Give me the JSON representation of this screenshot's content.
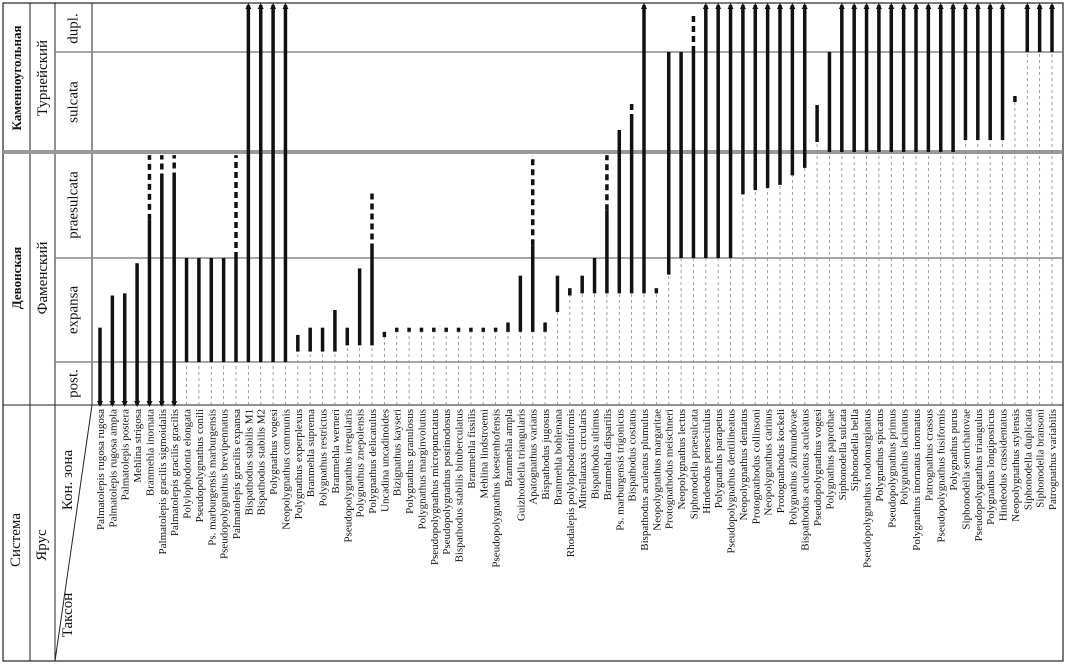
{
  "header": {
    "system": "Система",
    "stage": "Ярус",
    "zone": "Кон. зона",
    "taxon": "Таксон"
  },
  "systems": [
    {
      "label": "Каменноугольная"
    },
    {
      "label": "Девонская"
    }
  ],
  "stages": [
    {
      "label": "Турнейский"
    },
    {
      "label": "Фаменский"
    }
  ],
  "zones": [
    {
      "label": "post."
    },
    {
      "label": "expansa"
    },
    {
      "label": "praesulcata"
    },
    {
      "label": "sulcata"
    },
    {
      "label": "dupl."
    }
  ],
  "taxa": [
    {
      "name": "Palmatolepis rugosa rugosa",
      "solid": [
        0,
        1.33
      ],
      "down": true
    },
    {
      "name": "Palmatolepis rugosa ampla",
      "solid": [
        0,
        1.64
      ],
      "down": true
    },
    {
      "name": "Palmatolepis postera",
      "solid": [
        0,
        1.66
      ],
      "down": true
    },
    {
      "name": "Mehlina strigosa",
      "solid": [
        0,
        1.95
      ],
      "down": true
    },
    {
      "name": "Branmehla inornata",
      "solid": [
        0,
        2.36
      ],
      "dashed": [
        2.36,
        2.97
      ],
      "down": true
    },
    {
      "name": "Palmatolepis gracilis sigmoidalis",
      "solid": [
        0,
        2.74
      ],
      "dashed": [
        2.74,
        2.97
      ],
      "down": true
    },
    {
      "name": "Palmatolepis gracilis gracilis",
      "solid": [
        0,
        2.75
      ],
      "dashed": [
        2.75,
        2.97
      ],
      "down": true
    },
    {
      "name": "Polylophodonta elongata",
      "solid": [
        1,
        2
      ],
      "dotted": [
        0,
        1
      ]
    },
    {
      "name": "Pseudopolygnathus conili",
      "solid": [
        1,
        2
      ],
      "dotted": [
        0,
        1
      ]
    },
    {
      "name": "Ps. marburgensis marburgensis",
      "solid": [
        1,
        2
      ],
      "dotted": [
        0,
        1
      ]
    },
    {
      "name": "Pseudopolygnathus brevipennatus",
      "solid": [
        1,
        2
      ],
      "dotted": [
        0,
        1
      ]
    },
    {
      "name": "Palmatolepis gracilis expansa",
      "solid": [
        1,
        2
      ],
      "dashed": [
        2,
        2.97
      ],
      "dotted": [
        0,
        1
      ]
    },
    {
      "name": "Bispathodus stabilis M1",
      "solid": [
        1,
        5
      ],
      "dotted": [
        0,
        1
      ],
      "up": true
    },
    {
      "name": "Bispathodus stabilis M2",
      "solid": [
        1,
        5
      ],
      "dotted": [
        0,
        1
      ],
      "up": true
    },
    {
      "name": "Polygnathus vogesi",
      "solid": [
        1,
        5
      ],
      "dotted": [
        0,
        1
      ],
      "up": true
    },
    {
      "name": "Neopolygnathus communis",
      "solid": [
        1,
        5
      ],
      "dotted": [
        0,
        1
      ],
      "up": true
    },
    {
      "name": "Polygnathus experplexus",
      "solid": [
        1.1,
        1.26
      ],
      "dotted": [
        0,
        1.1
      ]
    },
    {
      "name": "Branmehla suprema",
      "solid": [
        1.1,
        1.33
      ],
      "dotted": [
        0,
        1.1
      ]
    },
    {
      "name": "Polygnathus restrictus",
      "solid": [
        1.1,
        1.33
      ],
      "dotted": [
        0,
        1.1
      ]
    },
    {
      "name": "Branmehla werneri",
      "solid": [
        1.1,
        1.5
      ],
      "dotted": [
        0,
        1.1
      ]
    },
    {
      "name": "Pseudopolygnathus irregularis",
      "solid": [
        1.16,
        1.33
      ],
      "dotted": [
        0,
        1.16
      ]
    },
    {
      "name": "Polygnathus znepolensis",
      "solid": [
        1.16,
        1.9
      ],
      "dotted": [
        0,
        1.16
      ]
    },
    {
      "name": "Polygnathus delicatulus",
      "solid": [
        1.16,
        2.08
      ],
      "dashed": [
        2.08,
        2.64
      ],
      "dotted": [
        0,
        1.16
      ]
    },
    {
      "name": "Uncadina uncadinoides",
      "solid": [
        1.24,
        1.29
      ],
      "dotted": [
        0,
        1.24
      ]
    },
    {
      "name": "Bizignathus kayseri",
      "solid": [
        1.29,
        1.33
      ],
      "dotted": [
        0,
        1.29
      ]
    },
    {
      "name": "Polygnathus granulosus",
      "solid": [
        1.29,
        1.33
      ],
      "dotted": [
        0,
        1.29
      ]
    },
    {
      "name": "Polygnathus marginvolutus",
      "solid": [
        1.29,
        1.33
      ],
      "dotted": [
        0,
        1.29
      ]
    },
    {
      "name": "Pseudopolygnathus micropunctatus",
      "solid": [
        1.29,
        1.33
      ],
      "dotted": [
        0,
        1.29
      ]
    },
    {
      "name": "Pseudopolygnathus postinodosus",
      "solid": [
        1.29,
        1.33
      ],
      "dotted": [
        0,
        1.29
      ]
    },
    {
      "name": "Bispathodus stabilis bituberculatus",
      "solid": [
        1.29,
        1.33
      ],
      "dotted": [
        0,
        1.29
      ]
    },
    {
      "name": "Branmehla fissilis",
      "solid": [
        1.29,
        1.33
      ],
      "dotted": [
        0,
        1.29
      ]
    },
    {
      "name": "Mehlina lindstroemi",
      "solid": [
        1.29,
        1.33
      ],
      "dotted": [
        0,
        1.29
      ]
    },
    {
      "name": "Pseudopolygnathus koestenhofensis",
      "solid": [
        1.29,
        1.33
      ],
      "dotted": [
        0,
        1.29
      ]
    },
    {
      "name": "Branmehla ampla",
      "solid": [
        1.29,
        1.38
      ],
      "dotted": [
        0,
        1.29
      ]
    },
    {
      "name": "Guizhoudella triangularis",
      "solid": [
        1.29,
        1.83
      ],
      "dotted": [
        0,
        1.29
      ]
    },
    {
      "name": "Apatognathus varians",
      "solid": [
        1.29,
        2.12
      ],
      "dashed": [
        2.12,
        2.97
      ],
      "dotted": [
        0,
        1.29
      ]
    },
    {
      "name": "Bispathodus jugosus",
      "solid": [
        1.29,
        1.38
      ],
      "dotted": [
        0,
        1.29
      ]
    },
    {
      "name": "Branmehla bohlenana",
      "solid": [
        1.48,
        1.83
      ],
      "dotted": [
        0,
        1.48
      ]
    },
    {
      "name": "Rhodalepis polylophodontiformis",
      "solid": [
        1.64,
        1.71
      ],
      "dotted": [
        0,
        1.64
      ]
    },
    {
      "name": "Mitrellataxis circularis",
      "solid": [
        1.66,
        1.83
      ],
      "dotted": [
        0,
        1.66
      ]
    },
    {
      "name": "Bispathodus ultimus",
      "solid": [
        1.66,
        2
      ],
      "dotted": [
        0,
        1.66
      ]
    },
    {
      "name": "Branmehla disparilis",
      "solid": [
        1.66,
        2.45
      ],
      "dashed": [
        2.45,
        2.97
      ],
      "dotted": [
        0,
        1.66
      ]
    },
    {
      "name": "Ps. marburgensis trigonicus",
      "solid": [
        1.66,
        3.22
      ],
      "dotted": [
        0,
        1.66
      ]
    },
    {
      "name": "Bispathodus costatus",
      "solid": [
        1.66,
        3.32
      ],
      "dashed": [
        3.32,
        3.52
      ],
      "dotted": [
        0,
        1.66
      ]
    },
    {
      "name": "Bispathodus aculeatus plumulus",
      "solid": [
        1.66,
        5
      ],
      "dotted": [
        0,
        1.66
      ],
      "up": true
    },
    {
      "name": "Neopolygnathus margaritae",
      "solid": [
        1.66,
        1.71
      ],
      "dotted": [
        0,
        1.66
      ]
    },
    {
      "name": "Protognathodus meischneri",
      "solid": [
        1.84,
        4
      ],
      "dotted": [
        0,
        1.84
      ]
    },
    {
      "name": "Neopolygnathus lectus",
      "solid": [
        2,
        4
      ],
      "dotted": [
        0,
        2
      ]
    },
    {
      "name": "Siphonodella praesulcata",
      "solid": [
        2,
        4
      ],
      "dashed": [
        4,
        4.8
      ],
      "dotted": [
        0,
        2
      ]
    },
    {
      "name": "Hindeodus penescitulus",
      "solid": [
        2,
        5
      ],
      "dotted": [
        0,
        2
      ],
      "up": true
    },
    {
      "name": "Polygnathus parapetus",
      "solid": [
        2,
        5
      ],
      "dotted": [
        0,
        2
      ],
      "up": true
    },
    {
      "name": "Pseudopolygnathus dentilineatus",
      "solid": [
        2,
        5
      ],
      "dotted": [
        0,
        2
      ],
      "up": true
    },
    {
      "name": "Neopolygnathus dentatus",
      "solid": [
        2.6,
        5
      ],
      "dotted": [
        0,
        2.6
      ],
      "up": true
    },
    {
      "name": "Protognathodus collinsoni",
      "solid": [
        2.64,
        5
      ],
      "dotted": [
        0,
        2.64
      ],
      "up": true
    },
    {
      "name": "Neopolygnathus carinus",
      "solid": [
        2.66,
        5
      ],
      "dotted": [
        0,
        2.66
      ],
      "up": true
    },
    {
      "name": "Protognathodus kockeli",
      "solid": [
        2.69,
        5
      ],
      "dotted": [
        0,
        2.69
      ],
      "up": true
    },
    {
      "name": "Polygnathus zikmundovae",
      "solid": [
        2.78,
        5
      ],
      "dotted": [
        0,
        2.78
      ],
      "up": true
    },
    {
      "name": "Bispathodus aculeatus aculeatus",
      "solid": [
        2.85,
        5
      ],
      "dotted": [
        0,
        2.85
      ],
      "up": true
    },
    {
      "name": "Pseudopolygnathus vogesi",
      "solid": [
        3.1,
        3.47
      ],
      "dotted": [
        0,
        3.1
      ]
    },
    {
      "name": "Polygnathus paprothae",
      "solid": [
        3,
        4
      ],
      "dotted": [
        0,
        3
      ]
    },
    {
      "name": "Siphonodella sulcata",
      "solid": [
        3,
        5
      ],
      "dotted": [
        0,
        3
      ],
      "up": true
    },
    {
      "name": "Siphonodella bella",
      "solid": [
        3,
        5
      ],
      "dotted": [
        0,
        3
      ],
      "up": true
    },
    {
      "name": "Pseudopolygnathus nodomarginatus",
      "solid": [
        3,
        5
      ],
      "dotted": [
        0,
        3
      ],
      "up": true
    },
    {
      "name": "Polygnathus spicatus",
      "solid": [
        3,
        5
      ],
      "dotted": [
        0,
        3
      ],
      "up": true
    },
    {
      "name": "Pseudopolygnathus primus",
      "solid": [
        3,
        5
      ],
      "dotted": [
        0,
        3
      ],
      "up": true
    },
    {
      "name": "Polygnathus lacinatus",
      "solid": [
        3,
        5
      ],
      "dotted": [
        0,
        3
      ],
      "up": true
    },
    {
      "name": "Polygnathus inornatus inornatus",
      "solid": [
        3,
        5
      ],
      "dotted": [
        0,
        3
      ],
      "up": true
    },
    {
      "name": "Patrognathus crassus",
      "solid": [
        3,
        5
      ],
      "dotted": [
        0,
        3
      ],
      "up": true
    },
    {
      "name": "Pseudopolygnathus fusiformis",
      "solid": [
        3,
        5
      ],
      "dotted": [
        0,
        3
      ],
      "up": true
    },
    {
      "name": "Polygnathus purus",
      "solid": [
        3,
        5
      ],
      "dotted": [
        0,
        3
      ],
      "up": true
    },
    {
      "name": "Siphonodella semichatovae",
      "solid": [
        3.12,
        5
      ],
      "dotted": [
        0,
        3.12
      ],
      "up": true
    },
    {
      "name": "Pseudopolygnathus triangulus",
      "solid": [
        3.12,
        5
      ],
      "dotted": [
        0,
        3.12
      ],
      "up": true
    },
    {
      "name": "Polygnathus longiposticus",
      "solid": [
        3.12,
        5
      ],
      "dotted": [
        0,
        3.12
      ],
      "up": true
    },
    {
      "name": "Hindeodus crassidentatus",
      "solid": [
        3.12,
        5
      ],
      "dotted": [
        0,
        3.12
      ],
      "up": true
    },
    {
      "name": "Neopolygnathus stylensis",
      "solid": [
        3.5,
        3.56
      ],
      "dotted": [
        0,
        3.5
      ]
    },
    {
      "name": "Siphonodella duplicata",
      "solid": [
        4,
        5
      ],
      "dotted": [
        0,
        4
      ],
      "up": true
    },
    {
      "name": "Siphonodella bransoni",
      "solid": [
        4,
        5
      ],
      "dotted": [
        0,
        4
      ],
      "up": true
    },
    {
      "name": "Patrognathus variabilis",
      "solid": [
        4,
        5
      ],
      "dotted": [
        0,
        4
      ],
      "up": true
    }
  ]
}
